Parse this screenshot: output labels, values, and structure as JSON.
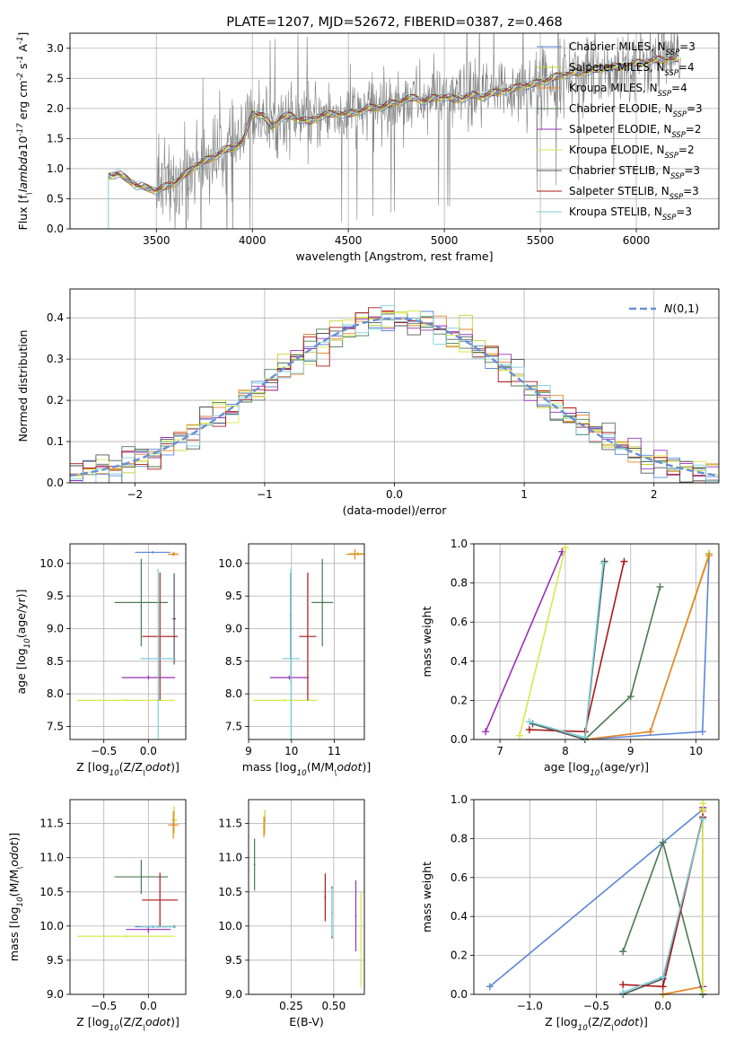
{
  "colors": {
    "Chabrier MILES": "#5b87d9",
    "Salpeter MILES": "#c2d230",
    "Kroupa MILES": "#e8842c",
    "Chabrier ELODIE": "#4a7a52",
    "Salpeter ELODIE": "#9b30b8",
    "Kroupa ELODIE": "#d8e84a",
    "Chabrier STELIB": "#555555",
    "Salpeter STELIB": "#a81818",
    "Kroupa STELIB": "#7ccfd8",
    "data": "#808080",
    "gauss": "#6a8fd6"
  },
  "chart_data": [
    {
      "type": "line",
      "title": "PLATE=1207, MJD=52672, FIBERID=0387, z=0.468",
      "xlabel": "wavelength [Angstrom, rest frame]",
      "ylabel": "Flux [f$_\\lambda$10$^{-17}$ erg cm$^{-2}$ s$^{-1}$ A$^{-1}$]",
      "xlim": [
        3050,
        6430
      ],
      "ylim": [
        0,
        3.25
      ],
      "xticks": [
        3500,
        4000,
        4500,
        5000,
        5500,
        6000
      ],
      "yticks": [
        0.0,
        0.5,
        1.0,
        1.5,
        2.0,
        2.5,
        3.0
      ],
      "legend_position": "upper-right",
      "legend": [
        {
          "label": "Chabrier MILES, N$_{SSP}$=3",
          "series": "Chabrier MILES"
        },
        {
          "label": "Salpeter MILES, N$_{SSP}$=4",
          "series": "Salpeter MILES"
        },
        {
          "label": "Kroupa MILES, N$_{SSP}$=4",
          "series": "Kroupa MILES"
        },
        {
          "label": "Chabrier ELODIE, N$_{SSP}$=3",
          "series": "Chabrier ELODIE"
        },
        {
          "label": "Salpeter ELODIE, N$_{SSP}$=2",
          "series": "Salpeter ELODIE"
        },
        {
          "label": "Kroupa ELODIE, N$_{SSP}$=2",
          "series": "Kroupa ELODIE"
        },
        {
          "label": "Chabrier STELIB, N$_{SSP}$=3",
          "series": "Chabrier STELIB"
        },
        {
          "label": "Salpeter STELIB, N$_{SSP}$=3",
          "series": "Salpeter STELIB"
        },
        {
          "label": "Kroupa STELIB, N$_{SSP}$=3",
          "series": "Kroupa STELIB"
        }
      ],
      "spectrum_start": 3250,
      "model_points": [
        [
          3250,
          0.88
        ],
        [
          3300,
          0.92
        ],
        [
          3350,
          0.82
        ],
        [
          3400,
          0.72
        ],
        [
          3450,
          0.68
        ],
        [
          3500,
          0.64
        ],
        [
          3550,
          0.7
        ],
        [
          3600,
          0.78
        ],
        [
          3650,
          0.9
        ],
        [
          3700,
          1.05
        ],
        [
          3750,
          1.12
        ],
        [
          3800,
          1.2
        ],
        [
          3850,
          1.3
        ],
        [
          3900,
          1.35
        ],
        [
          3950,
          1.45
        ],
        [
          4000,
          1.92
        ],
        [
          4050,
          1.9
        ],
        [
          4100,
          1.7
        ],
        [
          4150,
          1.85
        ],
        [
          4200,
          1.88
        ],
        [
          4250,
          1.82
        ],
        [
          4300,
          1.78
        ],
        [
          4350,
          1.88
        ],
        [
          4400,
          1.9
        ],
        [
          4450,
          1.92
        ],
        [
          4500,
          1.9
        ],
        [
          4550,
          1.95
        ],
        [
          4600,
          2.0
        ],
        [
          4650,
          2.02
        ],
        [
          4700,
          2.05
        ],
        [
          4750,
          2.1
        ],
        [
          4800,
          2.15
        ],
        [
          4850,
          2.18
        ],
        [
          4900,
          2.12
        ],
        [
          4950,
          2.18
        ],
        [
          5000,
          2.2
        ],
        [
          5050,
          2.15
        ],
        [
          5100,
          2.18
        ],
        [
          5150,
          2.22
        ],
        [
          5200,
          2.2
        ],
        [
          5250,
          2.25
        ],
        [
          5300,
          2.3
        ],
        [
          5350,
          2.3
        ],
        [
          5400,
          2.4
        ],
        [
          5450,
          2.38
        ],
        [
          5500,
          2.45
        ],
        [
          5550,
          2.48
        ],
        [
          5600,
          2.55
        ],
        [
          5650,
          2.58
        ],
        [
          5700,
          2.6
        ],
        [
          5750,
          2.62
        ],
        [
          5800,
          2.65
        ],
        [
          5850,
          2.7
        ],
        [
          5900,
          2.68
        ],
        [
          5950,
          2.72
        ],
        [
          6000,
          2.75
        ],
        [
          6050,
          2.78
        ],
        [
          6100,
          2.8
        ],
        [
          6150,
          2.82
        ],
        [
          6200,
          2.82
        ]
      ]
    },
    {
      "type": "histogram",
      "xlabel": "(data-model)/error",
      "ylabel": "Normed distribution",
      "xlim": [
        -2.5,
        2.5
      ],
      "ylim": [
        0,
        0.47
      ],
      "xticks": [
        -2,
        -1,
        0,
        1,
        2
      ],
      "yticks": [
        0.0,
        0.1,
        0.2,
        0.3,
        0.4
      ],
      "legend_position": "upper-right",
      "legend_label": "$\\mathcal{N}(0,1)$",
      "reference_curve": "normal pdf, mean 0, sigma 1",
      "bin_width": 0.1
    },
    {
      "type": "scatter",
      "xlabel": "Z [log$_{10}$(Z/Z$_\\odot$)]",
      "ylabel": "age  [log$_{10}$(age/yr)]",
      "xlim": [
        -0.88,
        0.42
      ],
      "ylim": [
        7.3,
        10.3
      ],
      "xticks": [
        -0.5,
        0.0
      ],
      "yticks": [
        7.5,
        8.0,
        8.5,
        9.0,
        9.5,
        10.0
      ],
      "points": [
        {
          "series": "Chabrier MILES",
          "x": 0.05,
          "y": 10.17,
          "xerr": 0.2,
          "yerr": 0.02
        },
        {
          "series": "Salpeter MILES",
          "x": 0.29,
          "y": 10.15,
          "xerr": 0.03,
          "yerr": 0.03
        },
        {
          "series": "Kroupa MILES",
          "x": 0.28,
          "y": 10.14,
          "xerr": 0.06,
          "yerr": 0.03
        },
        {
          "series": "Chabrier ELODIE",
          "x": -0.08,
          "y": 9.4,
          "xerr": 0.3,
          "yerr": 0.67
        },
        {
          "series": "Salpeter ELODIE",
          "x": 0.0,
          "y": 8.25,
          "xerr": 0.3,
          "yerr": 0.03
        },
        {
          "series": "Kroupa ELODIE",
          "x": -0.25,
          "y": 7.9,
          "xerr": 0.55,
          "yerr": 0.02
        },
        {
          "series": "Chabrier STELIB",
          "x": 0.29,
          "y": 9.15,
          "xerr": 0.02,
          "yerr": 0.7
        },
        {
          "series": "Salpeter STELIB",
          "x": 0.13,
          "y": 8.88,
          "xerr": 0.2,
          "yerr": 0.98
        },
        {
          "series": "Kroupa STELIB",
          "x": 0.11,
          "y": 8.54,
          "xerr": 0.2,
          "yerr": 1.38
        }
      ]
    },
    {
      "type": "scatter",
      "xlabel": "mass [log$_{10}$(M/M$_\\odot$)]",
      "xlim": [
        9.0,
        11.7
      ],
      "ylim": [
        7.3,
        10.3
      ],
      "xticks": [
        9,
        10,
        11
      ],
      "yticks": [
        7.5,
        8.0,
        8.5,
        9.0,
        9.5,
        10.0
      ],
      "points": [
        {
          "series": "Chabrier MILES",
          "x": 9.98,
          "y": 9.2,
          "xerr": 0.02,
          "yerr": 0.65
        },
        {
          "series": "Salpeter MILES",
          "x": 11.55,
          "y": 10.15,
          "xerr": 0.2,
          "yerr": 0.03
        },
        {
          "series": "Kroupa MILES",
          "x": 11.48,
          "y": 10.14,
          "xerr": 0.2,
          "yerr": 0.08
        },
        {
          "series": "Chabrier ELODIE",
          "x": 10.72,
          "y": 9.4,
          "xerr": 0.25,
          "yerr": 0.67
        },
        {
          "series": "Salpeter ELODIE",
          "x": 9.95,
          "y": 8.25,
          "xerr": 0.45,
          "yerr": 0.03
        },
        {
          "series": "Kroupa ELODIE",
          "x": 9.85,
          "y": 7.9,
          "xerr": 0.75,
          "yerr": 0.02
        },
        {
          "series": "Chabrier STELIB",
          "x": 9.99,
          "y": 9.0,
          "xerr": 0.02,
          "yerr": 0.85
        },
        {
          "series": "Salpeter STELIB",
          "x": 10.38,
          "y": 8.88,
          "xerr": 0.2,
          "yerr": 0.98
        },
        {
          "series": "Kroupa STELIB",
          "x": 9.99,
          "y": 8.54,
          "xerr": 0.2,
          "yerr": 1.38
        }
      ]
    },
    {
      "type": "line",
      "xlabel": "age  [log$_{10}$(age/yr)]",
      "ylabel": "mass weight",
      "xlim": [
        6.6,
        10.35
      ],
      "ylim": [
        0,
        1
      ],
      "xticks": [
        7,
        8,
        9,
        10
      ],
      "yticks": [
        0.0,
        0.2,
        0.4,
        0.6,
        0.8,
        1.0
      ],
      "series": [
        {
          "name": "Chabrier MILES",
          "x": [
            8.3,
            10.1,
            10.2
          ],
          "y": [
            0.0,
            0.04,
            0.95
          ]
        },
        {
          "name": "Salpeter MILES",
          "x": [
            8.3,
            9.3,
            10.2
          ],
          "y": [
            0.0,
            0.04,
            0.95
          ]
        },
        {
          "name": "Kroupa MILES",
          "x": [
            8.3,
            9.3,
            10.2
          ],
          "y": [
            0.0,
            0.04,
            0.94
          ]
        },
        {
          "name": "Chabrier ELODIE",
          "x": [
            8.3,
            9.0,
            9.45
          ],
          "y": [
            0.0,
            0.22,
            0.78
          ]
        },
        {
          "name": "Salpeter ELODIE",
          "x": [
            6.78,
            7.95
          ],
          "y": [
            0.04,
            0.96
          ]
        },
        {
          "name": "Kroupa ELODIE",
          "x": [
            7.3,
            8.0
          ],
          "y": [
            0.02,
            0.98
          ]
        },
        {
          "name": "Chabrier STELIB",
          "x": [
            7.5,
            8.3,
            8.6
          ],
          "y": [
            0.08,
            0.0,
            0.91
          ]
        },
        {
          "name": "Salpeter STELIB",
          "x": [
            7.45,
            8.3,
            8.9
          ],
          "y": [
            0.05,
            0.04,
            0.91
          ]
        },
        {
          "name": "Kroupa STELIB",
          "x": [
            7.45,
            8.3,
            8.58
          ],
          "y": [
            0.09,
            0.01,
            0.9
          ]
        }
      ]
    },
    {
      "type": "scatter",
      "xlabel": "Z [log$_{10}$(Z/Z$_\\odot$)]",
      "ylabel": "mass [log$_{10}$(M/M$_\\odot$)]",
      "xlim": [
        -0.88,
        0.42
      ],
      "ylim": [
        9.0,
        11.85
      ],
      "xticks": [
        -0.5,
        0.0
      ],
      "yticks": [
        9.0,
        9.5,
        10.0,
        10.5,
        11.0,
        11.5
      ],
      "points": [
        {
          "series": "Chabrier MILES",
          "x": 0.05,
          "y": 9.99,
          "xerr": 0.2,
          "yerr": 0.02
        },
        {
          "series": "Salpeter MILES",
          "x": 0.29,
          "y": 11.55,
          "xerr": 0.03,
          "yerr": 0.2
        },
        {
          "series": "Kroupa MILES",
          "x": 0.28,
          "y": 11.48,
          "xerr": 0.06,
          "yerr": 0.2
        },
        {
          "series": "Chabrier ELODIE",
          "x": -0.08,
          "y": 10.72,
          "xerr": 0.3,
          "yerr": 0.25
        },
        {
          "series": "Salpeter ELODIE",
          "x": 0.0,
          "y": 9.95,
          "xerr": 0.25,
          "yerr": 0.05
        },
        {
          "series": "Kroupa ELODIE",
          "x": -0.25,
          "y": 9.85,
          "xerr": 0.55,
          "yerr": 0.02
        },
        {
          "series": "Chabrier STELIB",
          "x": 0.29,
          "y": 9.99,
          "xerr": 0.02,
          "yerr": 0.02
        },
        {
          "series": "Salpeter STELIB",
          "x": 0.13,
          "y": 10.38,
          "xerr": 0.2,
          "yerr": 0.4
        },
        {
          "series": "Kroupa STELIB",
          "x": 0.11,
          "y": 9.99,
          "xerr": 0.2,
          "yerr": 0.02
        }
      ]
    },
    {
      "type": "scatter",
      "xlabel": "E(B-V)",
      "xlim": [
        0.0,
        0.68
      ],
      "ylim": [
        9.0,
        11.85
      ],
      "xticks": [
        0.25,
        0.5
      ],
      "yticks": [
        9.0,
        9.5,
        10.0,
        10.5,
        11.0,
        11.5
      ],
      "points": [
        {
          "series": "Chabrier MILES",
          "x": 0.095,
          "y": 11.55,
          "xerr": 0.005,
          "yerr": 0.06
        },
        {
          "series": "Salpeter MILES",
          "x": 0.095,
          "y": 11.52,
          "xerr": 0.005,
          "yerr": 0.18
        },
        {
          "series": "Kroupa MILES",
          "x": 0.09,
          "y": 11.45,
          "xerr": 0.005,
          "yerr": 0.15
        },
        {
          "series": "Chabrier ELODIE",
          "x": 0.035,
          "y": 10.9,
          "xerr": 0.005,
          "yerr": 0.38
        },
        {
          "series": "Salpeter ELODIE",
          "x": 0.63,
          "y": 10.15,
          "xerr": 0.005,
          "yerr": 0.52
        },
        {
          "series": "Kroupa ELODIE",
          "x": 0.66,
          "y": 9.8,
          "xerr": 0.005,
          "yerr": 0.7
        },
        {
          "series": "Chabrier STELIB",
          "x": 0.49,
          "y": 10.2,
          "xerr": 0.005,
          "yerr": 0.38
        },
        {
          "series": "Salpeter STELIB",
          "x": 0.45,
          "y": 10.42,
          "xerr": 0.005,
          "yerr": 0.35
        },
        {
          "series": "Kroupa STELIB",
          "x": 0.49,
          "y": 10.2,
          "xerr": 0.005,
          "yerr": 0.35
        }
      ]
    },
    {
      "type": "line",
      "xlabel": "Z [log$_{10}$(Z/Z$_\\odot$)]",
      "ylabel": "mass weight",
      "xlim": [
        -1.42,
        0.42
      ],
      "ylim": [
        0,
        1
      ],
      "xticks": [
        -1.0,
        -0.5,
        0.0
      ],
      "yticks": [
        0.0,
        0.2,
        0.4,
        0.6,
        0.8,
        1.0
      ],
      "series": [
        {
          "name": "Chabrier MILES",
          "x": [
            -1.3,
            0.3,
            0.3
          ],
          "y": [
            0.04,
            0.95,
            0.0
          ]
        },
        {
          "name": "Salpeter MILES",
          "x": [
            0.0,
            0.3,
            0.3
          ],
          "y": [
            0.0,
            0.04,
            0.95
          ]
        },
        {
          "name": "Kroupa MILES",
          "x": [
            0.0,
            0.3,
            0.3
          ],
          "y": [
            0.0,
            0.04,
            0.94
          ]
        },
        {
          "name": "Chabrier ELODIE",
          "x": [
            -0.3,
            0.0,
            0.3
          ],
          "y": [
            0.22,
            0.78,
            0.0
          ]
        },
        {
          "name": "Salpeter ELODIE",
          "x": [
            0.3,
            0.3
          ],
          "y": [
            0.04,
            0.96
          ]
        },
        {
          "name": "Kroupa ELODIE",
          "x": [
            0.3,
            0.3
          ],
          "y": [
            0.02,
            0.98
          ]
        },
        {
          "name": "Chabrier STELIB",
          "x": [
            -0.3,
            0.0,
            0.3
          ],
          "y": [
            0.0,
            0.08,
            0.91
          ]
        },
        {
          "name": "Salpeter STELIB",
          "x": [
            -0.3,
            0.0,
            0.3
          ],
          "y": [
            0.05,
            0.04,
            0.91
          ]
        },
        {
          "name": "Kroupa STELIB",
          "x": [
            -0.3,
            0.0,
            0.3
          ],
          "y": [
            0.01,
            0.09,
            0.9
          ]
        }
      ]
    }
  ]
}
